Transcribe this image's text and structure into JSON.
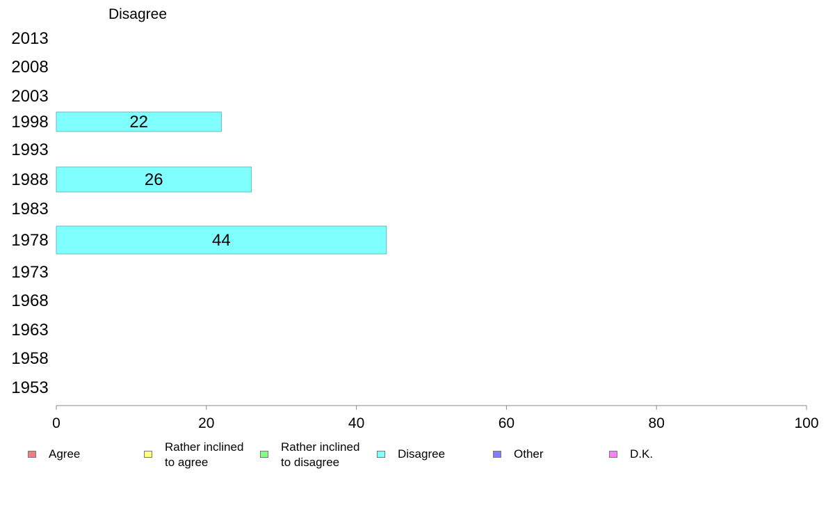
{
  "chart_data": {
    "type": "bar",
    "orientation": "horizontal",
    "title": "Disagree",
    "categories": [
      "2013",
      "2008",
      "2003",
      "1998",
      "1993",
      "1988",
      "1983",
      "1978",
      "1973",
      "1968",
      "1963",
      "1958",
      "1953"
    ],
    "series": [
      {
        "name": "Disagree",
        "values": [
          null,
          null,
          null,
          22,
          null,
          26,
          null,
          44,
          null,
          null,
          null,
          null,
          null
        ],
        "color": "#80ffff"
      }
    ],
    "data_labels": [
      null,
      null,
      null,
      "22",
      null,
      "26",
      null,
      "44",
      null,
      null,
      null,
      null,
      null
    ],
    "xlim": [
      0,
      100
    ],
    "xticks": [
      0,
      20,
      40,
      60,
      80,
      100
    ],
    "grid": false,
    "legend_position": "bottom"
  },
  "legend": [
    {
      "label": "Agree",
      "color": "#f08080"
    },
    {
      "label": "Rather inclined\nto agree",
      "color": "#ffff80"
    },
    {
      "label": "Rather inclined\nto disagree",
      "color": "#80ff80"
    },
    {
      "label": "Disagree",
      "color": "#80ffff"
    },
    {
      "label": "Other",
      "color": "#8080ff"
    },
    {
      "label": "D.K.",
      "color": "#ff80ff"
    }
  ]
}
